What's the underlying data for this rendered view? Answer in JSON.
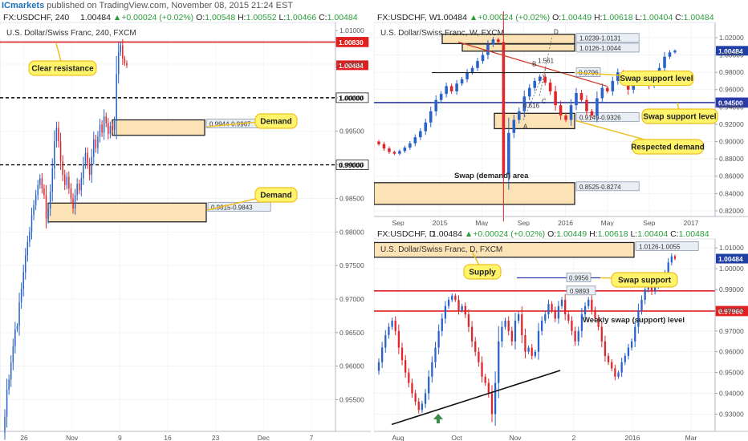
{
  "header": {
    "brand": "ICmarkets",
    "text": " published on TradingView.com, November 08, 2015 21:24 EST"
  },
  "colors": {
    "up": "#2962c9",
    "down": "#e0262a",
    "zone_fill": "#fbe3b5",
    "callout": "#fff46a",
    "callout_border": "#f0c020",
    "support_line": "#2b3aa8",
    "resistance_line": "#e02020",
    "trend": "#d04030"
  },
  "chart_data": [
    {
      "id": "h4",
      "type": "candlestick",
      "ohlc_line": {
        "symbol": "FX:USDCHF, 240",
        "price": "1.00484",
        "change": "+0.00024 (+0.02%)",
        "o_label": "O:",
        "o": "1.00548",
        "h_label": "H:",
        "h": "1.00552",
        "l_label": "L:",
        "l": "1.00466",
        "c_label": "C:",
        "c": "1.00484"
      },
      "title": "U.S. Dollar/Swiss Franc, 240, FXCM",
      "ylim": [
        0.951,
        1.0105
      ],
      "y_ticks": [
        "1.01000",
        "1.00500",
        "1.00000",
        "0.99500",
        "0.99000",
        "0.98500",
        "0.98000",
        "0.97500",
        "0.97000",
        "0.96500",
        "0.96000",
        "0.95500"
      ],
      "y_tick_values": [
        1.01,
        1.005,
        1.0,
        0.995,
        0.99,
        0.985,
        0.98,
        0.975,
        0.97,
        0.965,
        0.96,
        0.955
      ],
      "x_ticks": [
        "26",
        "Nov",
        "9",
        "16",
        "23",
        "Dec",
        "7"
      ],
      "levels": [
        {
          "value": 1.0083,
          "label": "1.00830",
          "style": "solid",
          "color": "#e02020"
        },
        {
          "value": 1.0,
          "label": "1.00000",
          "style": "dash",
          "color": "#000000"
        },
        {
          "value": 0.99,
          "label": "0.99000",
          "style": "dash",
          "color": "#000000"
        }
      ],
      "current": {
        "value": 1.00484,
        "label": "1.00484"
      },
      "zones": [
        {
          "label": "0.9944-0.9967",
          "low": 0.9944,
          "high": 0.9967
        },
        {
          "label": "0.9815-0.9843",
          "low": 0.9815,
          "high": 0.9843
        }
      ],
      "callouts": [
        "Clear resistance",
        "Demand",
        "Demand"
      ],
      "series": [
        0.9525,
        0.9565,
        0.958,
        0.9605,
        0.963,
        0.9655,
        0.966,
        0.9695,
        0.9715,
        0.974,
        0.9765,
        0.9785,
        0.98,
        0.9825,
        0.984,
        0.9855,
        0.987,
        0.988,
        0.9865,
        0.9855,
        0.982,
        0.9835,
        0.986,
        0.9895,
        0.9935,
        0.9955,
        0.9935,
        0.9905,
        0.9885,
        0.987,
        0.9882,
        0.9865,
        0.985,
        0.9835,
        0.9855,
        0.9872,
        0.9862,
        0.988,
        0.9902,
        0.9918,
        0.9902,
        0.9885,
        0.9912,
        0.9938,
        0.9925,
        0.9942,
        0.996,
        0.9948,
        0.9972,
        0.9962,
        0.9946,
        0.9958,
        0.9952,
        0.9965,
        1.0035,
        1.0068,
        1.0078,
        1.0058,
        1.0052,
        1.0048
      ]
    },
    {
      "id": "weekly",
      "type": "candlestick",
      "ohlc_line": {
        "symbol": "FX:USDCHF, W",
        "price": "1.00484",
        "change": "+0.00024 (+0.02%)",
        "o_label": "O:",
        "o": "1.00449",
        "h_label": "H:",
        "h": "1.00618",
        "l_label": "L:",
        "l": "1.00404",
        "c_label": "C:",
        "c": "1.00484"
      },
      "title": "U.S. Dollar/Swiss Franc, W, FXCM",
      "ylim": [
        0.819,
        1.032
      ],
      "y_ticks": [
        "1.02000",
        "1.00000",
        "0.98000",
        "0.96000",
        "0.94000",
        "0.92000",
        "0.90000",
        "0.88000",
        "0.86000",
        "0.84000",
        "0.82000"
      ],
      "y_tick_values": [
        1.02,
        1.0,
        0.98,
        0.96,
        0.94,
        0.92,
        0.9,
        0.88,
        0.86,
        0.84,
        0.82
      ],
      "x_ticks": [
        "Sep",
        "2015",
        "May",
        "Sep",
        "2016",
        "May",
        "Sep",
        "2017"
      ],
      "levels": [
        {
          "value": 0.945,
          "label": "0.94500",
          "style": "solid",
          "color": "#2b3aa8"
        }
      ],
      "current": {
        "value": 1.00484,
        "label": "1.00484"
      },
      "zones": [
        {
          "label": "1.0239-1.0131",
          "low": 1.0131,
          "high": 1.0239
        },
        {
          "label": "1.0126-1.0044",
          "low": 1.0044,
          "high": 1.0126
        },
        {
          "label": "0.9149-0.9326",
          "low": 0.9149,
          "high": 0.9326
        },
        {
          "label": "0.8525-0.8274",
          "low": 0.8274,
          "high": 0.8525
        }
      ],
      "small_levels": [
        {
          "label": "0.9796",
          "value": 0.9796
        }
      ],
      "pattern_labels": [
        "A",
        "B",
        "C",
        "D",
        "1.561",
        "0.616"
      ],
      "callouts": [
        "Swap support level",
        "Swap support level",
        "Respected demand"
      ],
      "plain_labels": [
        "Swap (demand) area"
      ],
      "series": [
        0.897,
        0.892,
        0.888,
        0.886,
        0.889,
        0.893,
        0.898,
        0.905,
        0.912,
        0.922,
        0.935,
        0.948,
        0.955,
        0.964,
        0.958,
        0.967,
        0.972,
        0.98,
        0.985,
        0.993,
        1.0,
        1.012,
        1.018,
        1.015,
        0.862,
        0.91,
        0.925,
        0.935,
        0.952,
        0.962,
        0.97,
        0.975,
        0.968,
        0.958,
        0.942,
        0.93,
        0.925,
        0.942,
        0.956,
        0.948,
        0.935,
        0.93,
        0.95,
        0.962,
        0.958,
        0.97,
        0.98,
        0.975,
        0.96,
        0.97,
        0.978,
        0.975,
        0.965,
        0.972,
        0.985,
        0.998,
        1.003,
        1.005
      ]
    },
    {
      "id": "daily",
      "type": "candlestick",
      "ohlc_line": {
        "symbol": "FX:USDCHF, D",
        "price": "1.00484",
        "change": "+0.00024 (+0.02%)",
        "o_label": "O:",
        "o": "1.00449",
        "h_label": "H:",
        "h": "1.00618",
        "l_label": "L:",
        "l": "1.00404",
        "c_label": "C:",
        "c": "1.00484"
      },
      "title": "U.S. Dollar/Swiss Franc, D, FXCM",
      "ylim": [
        0.924,
        1.012
      ],
      "y_ticks": [
        "1.01000",
        "1.00000",
        "0.99000",
        "0.98000",
        "0.97000",
        "0.96000",
        "0.95000",
        "0.94000",
        "0.93000"
      ],
      "y_tick_values": [
        1.01,
        1.0,
        0.99,
        0.98,
        0.97,
        0.96,
        0.95,
        0.94,
        0.93
      ],
      "x_ticks": [
        "Aug",
        "Oct",
        "Nov",
        "2",
        "2016",
        "Mar"
      ],
      "levels": [
        {
          "value": 0.9893,
          "label": "0.9893",
          "style": "solid",
          "color": "#e02020",
          "boxed": true
        },
        {
          "value": 0.9796,
          "label": "0.97960",
          "style": "solid",
          "color": "#e02020"
        }
      ],
      "current": {
        "value": 1.00484,
        "label": "1.00484"
      },
      "zones": [
        {
          "label": "1.0126-1.0055",
          "low": 1.0055,
          "high": 1.0126
        }
      ],
      "small_levels": [
        {
          "label": "0.9956",
          "value": 0.9956
        }
      ],
      "callouts": [
        "Supply",
        "Swap support"
      ],
      "plain_labels": [
        "Weekly swap (support) level"
      ],
      "series": [
        0.955,
        0.962,
        0.968,
        0.972,
        0.975,
        0.97,
        0.962,
        0.956,
        0.95,
        0.945,
        0.94,
        0.936,
        0.932,
        0.935,
        0.94,
        0.948,
        0.955,
        0.962,
        0.97,
        0.976,
        0.982,
        0.985,
        0.987,
        0.985,
        0.98,
        0.982,
        0.978,
        0.972,
        0.965,
        0.96,
        0.955,
        0.948,
        0.945,
        0.94,
        0.93,
        0.945,
        0.965,
        0.972,
        0.975,
        0.97,
        0.965,
        0.975,
        0.978,
        0.968,
        0.96,
        0.962,
        0.958,
        0.96,
        0.97,
        0.975,
        0.978,
        0.983,
        0.98,
        0.976,
        0.982,
        0.985,
        0.978,
        0.975,
        0.97,
        0.965,
        0.97,
        0.978,
        0.982,
        0.985,
        0.98,
        0.976,
        0.972,
        0.965,
        0.958,
        0.955,
        0.952,
        0.948,
        0.95,
        0.955,
        0.958,
        0.962,
        0.965,
        0.972,
        0.98,
        0.985,
        0.99,
        0.993,
        0.989,
        0.992,
        0.996,
        0.995,
        0.998,
        1.003,
        1.006,
        1.0048
      ]
    }
  ]
}
